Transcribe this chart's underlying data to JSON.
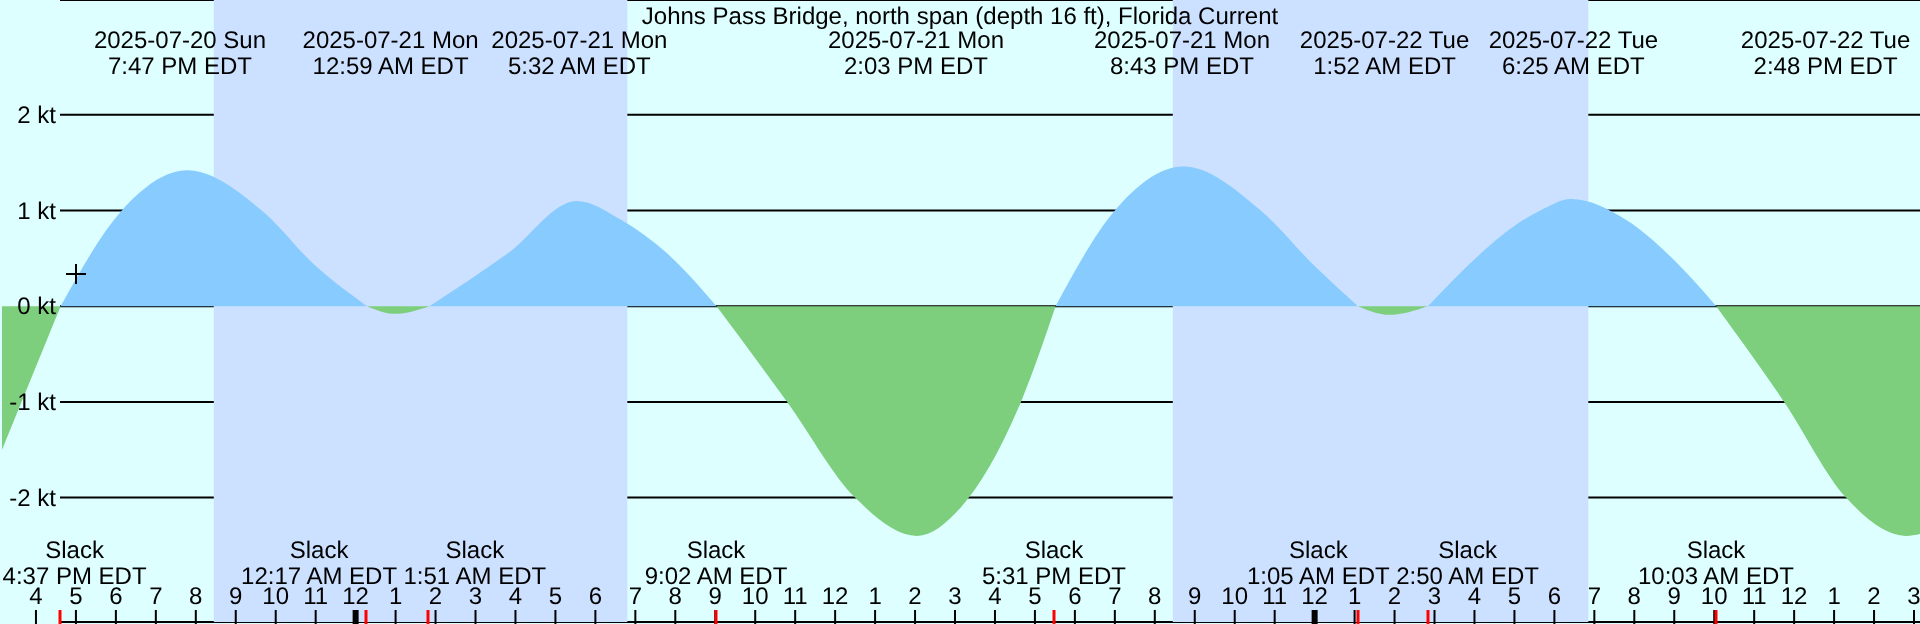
{
  "chart_data": {
    "type": "area",
    "title": "Johns Pass Bridge, north span (depth 16 ft), Florida Current",
    "series": [
      {
        "color": "#87cbff",
        "x": [
          "2025-07-20T16:37",
          "2025-07-20T18:09",
          "2025-07-20T19:47",
          "2025-07-20T21:39",
          "2025-07-20T23:00",
          "2025-07-21T00:17",
          "2025-07-21T01:00",
          "2025-07-21T01:51",
          "2025-07-21T03:48",
          "2025-07-21T05:32",
          "2025-07-21T06:39",
          "2025-07-21T07:48",
          "2025-07-21T09:02",
          "2025-07-21T13:00",
          "2025-07-21T17:31",
          "2025-07-21T19:00",
          "2025-07-21T20:43",
          "2025-07-21T22:39",
          "2025-07-22T00:00",
          "2025-07-22T01:05",
          "2025-07-22T02:00",
          "2025-07-22T02:50",
          "2025-07-22T05:39",
          "2025-07-22T06:25",
          "2025-07-22T07:48",
          "2025-07-22T09:00",
          "2025-07-22T10:03"
        ],
        "values": [
          0,
          1.0,
          1.42,
          1.0,
          0.42,
          0,
          null,
          0,
          0.55,
          1.1,
          0.9,
          0.55,
          0,
          null,
          0,
          1.0,
          1.46,
          1.0,
          0.42,
          0,
          null,
          0,
          1.0,
          1.12,
          0.9,
          0.48,
          0
        ]
      },
      {
        "color": "#7dce7d",
        "x": [
          "2025-07-20T15:09",
          "2025-07-20T16:37",
          "2025-07-20T20:00",
          "2025-07-21T00:17",
          "2025-07-21T00:59",
          "2025-07-21T01:51",
          "2025-07-21T05:00",
          "2025-07-21T09:02",
          "2025-07-21T10:48",
          "2025-07-21T12:30",
          "2025-07-21T14:03",
          "2025-07-21T15:09",
          "2025-07-21T16:39",
          "2025-07-21T17:31",
          "2025-07-21T21:00",
          "2025-07-22T01:05",
          "2025-07-22T01:52",
          "2025-07-22T02:50",
          "2025-07-22T06:00",
          "2025-07-22T10:03",
          "2025-07-22T11:45",
          "2025-07-22T13:18",
          "2025-07-22T14:48",
          "2025-07-22T15:09"
        ],
        "values": [
          -1.5,
          0,
          null,
          0,
          -0.08,
          0,
          null,
          0,
          -1.0,
          -2.0,
          -2.4,
          -2.1,
          -1.0,
          0,
          null,
          0,
          -0.09,
          0,
          null,
          0,
          -1.0,
          -2.0,
          -2.4,
          -2.38
        ]
      }
    ],
    "xlim": [
      "2025-07-20T15:09",
      "2025-07-22T15:09"
    ],
    "xticks": [
      {
        "value": "2025-07-20T16:00",
        "label": "4"
      },
      {
        "value": "2025-07-20T17:00",
        "label": "5"
      },
      {
        "value": "2025-07-20T18:00",
        "label": "6"
      },
      {
        "value": "2025-07-20T19:00",
        "label": "7"
      },
      {
        "value": "2025-07-20T20:00",
        "label": "8"
      },
      {
        "value": "2025-07-20T21:00",
        "label": "9"
      },
      {
        "value": "2025-07-20T22:00",
        "label": "10"
      },
      {
        "value": "2025-07-20T23:00",
        "label": "11"
      },
      {
        "value": "2025-07-21T00:00",
        "label": "12"
      },
      {
        "value": "2025-07-21T01:00",
        "label": "1"
      },
      {
        "value": "2025-07-21T02:00",
        "label": "2"
      },
      {
        "value": "2025-07-21T03:00",
        "label": "3"
      },
      {
        "value": "2025-07-21T04:00",
        "label": "4"
      },
      {
        "value": "2025-07-21T05:00",
        "label": "5"
      },
      {
        "value": "2025-07-21T06:00",
        "label": "6"
      },
      {
        "value": "2025-07-21T07:00",
        "label": "7"
      },
      {
        "value": "2025-07-21T08:00",
        "label": "8"
      },
      {
        "value": "2025-07-21T09:00",
        "label": "9"
      },
      {
        "value": "2025-07-21T10:00",
        "label": "10"
      },
      {
        "value": "2025-07-21T11:00",
        "label": "11"
      },
      {
        "value": "2025-07-21T12:00",
        "label": "12"
      },
      {
        "value": "2025-07-21T13:00",
        "label": "1"
      },
      {
        "value": "2025-07-21T14:00",
        "label": "2"
      },
      {
        "value": "2025-07-21T15:00",
        "label": "3"
      },
      {
        "value": "2025-07-21T16:00",
        "label": "4"
      },
      {
        "value": "2025-07-21T17:00",
        "label": "5"
      },
      {
        "value": "2025-07-21T18:00",
        "label": "6"
      },
      {
        "value": "2025-07-21T19:00",
        "label": "7"
      },
      {
        "value": "2025-07-21T20:00",
        "label": "8"
      },
      {
        "value": "2025-07-21T21:00",
        "label": "9"
      },
      {
        "value": "2025-07-21T22:00",
        "label": "10"
      },
      {
        "value": "2025-07-21T23:00",
        "label": "11"
      },
      {
        "value": "2025-07-22T00:00",
        "label": "12"
      },
      {
        "value": "2025-07-22T01:00",
        "label": "1"
      },
      {
        "value": "2025-07-22T02:00",
        "label": "2"
      },
      {
        "value": "2025-07-22T03:00",
        "label": "3"
      },
      {
        "value": "2025-07-22T04:00",
        "label": "4"
      },
      {
        "value": "2025-07-22T05:00",
        "label": "5"
      },
      {
        "value": "2025-07-22T06:00",
        "label": "6"
      },
      {
        "value": "2025-07-22T07:00",
        "label": "7"
      },
      {
        "value": "2025-07-22T08:00",
        "label": "8"
      },
      {
        "value": "2025-07-22T09:00",
        "label": "9"
      },
      {
        "value": "2025-07-22T10:00",
        "label": "10"
      },
      {
        "value": "2025-07-22T11:00",
        "label": "11"
      },
      {
        "value": "2025-07-22T12:00",
        "label": "12"
      },
      {
        "value": "2025-07-22T13:00",
        "label": "1"
      },
      {
        "value": "2025-07-22T14:00",
        "label": "2"
      },
      {
        "value": "2025-07-22T15:00",
        "label": "3"
      }
    ],
    "ylim": [
      -3.3,
      3.2
    ],
    "yticks": [
      {
        "value": -2,
        "label": "-2 kt"
      },
      {
        "value": -1,
        "label": "-1 kt"
      },
      {
        "value": 0,
        "label": "0 kt"
      },
      {
        "value": 1,
        "label": "1 kt"
      },
      {
        "value": 2,
        "label": "2 kt"
      }
    ],
    "grid": "y",
    "bands": [
      {
        "axis": "x",
        "from": "2025-07-20T20:27",
        "to": "2025-07-21T06:48",
        "color": "#cce0ff"
      },
      {
        "axis": "x",
        "from": "2025-07-21T20:27",
        "to": "2025-07-22T06:51",
        "color": "#cce0ff"
      }
    ],
    "annotations": [
      "2025-07-20 Sun\n7:47 PM EDT",
      "2025-07-21 Mon\n12:59 AM EDT",
      "2025-07-21 Mon\n5:32 AM EDT",
      "2025-07-21 Mon\n2:03 PM EDT",
      "2025-07-21 Mon\n8:43 PM EDT",
      "2025-07-22 Tue\n1:52 AM EDT",
      "2025-07-22 Tue\n6:25 AM EDT",
      "2025-07-22 Tue\n2:48 PM EDT",
      "Slack\n4:37 PM EDT",
      "Slack\n12:17 AM EDT",
      "Slack\n1:51 AM EDT",
      "Slack\n9:02 AM EDT",
      "Slack\n5:31 PM EDT",
      "Slack\n1:05 AM EDT",
      "Slack\n2:50 AM EDT",
      "Slack\n10:03 AM EDT"
    ]
  }
}
